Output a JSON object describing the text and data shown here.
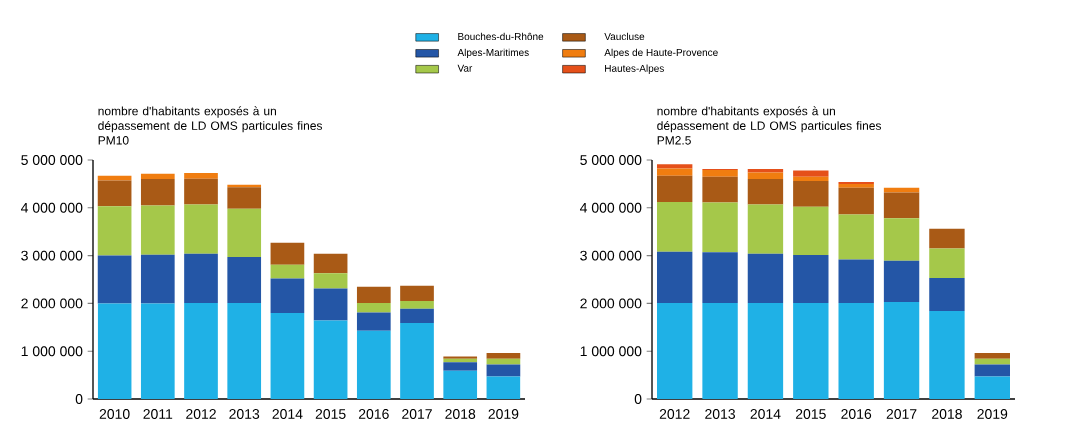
{
  "chart_data": [
    {
      "type": "bar",
      "stacked": true,
      "title": "nombre d'habitants exposés à un dépassement de LD OMS particules fines PM10",
      "categories": [
        "2010",
        "2011",
        "2012",
        "2013",
        "2014",
        "2015",
        "2016",
        "2017",
        "2018",
        "2019"
      ],
      "ylim": [
        0,
        5000000
      ],
      "yticks": [
        {
          "value": 0,
          "label": "0"
        },
        {
          "value": 1000000,
          "label": "1 000 000"
        },
        {
          "value": 2000000,
          "label": "2 000 000"
        },
        {
          "value": 3000000,
          "label": "3 000 000"
        },
        {
          "value": 4000000,
          "label": "4 000 000"
        },
        {
          "value": 5000000,
          "label": "5 000 000"
        }
      ],
      "legend": "top",
      "series": [
        {
          "name": "Bouches-du-Rhône",
          "color": "#1fb1e6",
          "values": [
            2000000,
            2000000,
            2010000,
            2010000,
            1800000,
            1640000,
            1430000,
            1590000,
            590000,
            470000
          ]
        },
        {
          "name": "Alpes-Maritimes",
          "color": "#2456a6",
          "values": [
            1000000,
            1020000,
            1030000,
            960000,
            720000,
            670000,
            380000,
            300000,
            180000,
            250000
          ]
        },
        {
          "name": "Var",
          "color": "#a5c84a",
          "values": [
            1030000,
            1030000,
            1030000,
            1010000,
            290000,
            320000,
            200000,
            160000,
            70000,
            120000
          ]
        },
        {
          "name": "Vaucluse",
          "color": "#a95a16",
          "values": [
            540000,
            550000,
            540000,
            450000,
            460000,
            410000,
            340000,
            320000,
            50000,
            120000
          ]
        },
        {
          "name": "Alpes de Haute-Provence",
          "color": "#f07d10",
          "values": [
            100000,
            110000,
            120000,
            50000,
            0,
            0,
            0,
            0,
            0,
            0
          ]
        },
        {
          "name": "Hautes-Alpes",
          "color": "#e5501a",
          "values": [
            0,
            0,
            0,
            0,
            0,
            0,
            0,
            0,
            0,
            0
          ]
        }
      ]
    },
    {
      "type": "bar",
      "stacked": true,
      "title": "nombre d'habitants exposés à un dépassement de LD OMS particules fines PM2.5",
      "categories": [
        "2012",
        "2013",
        "2014",
        "2015",
        "2016",
        "2017",
        "2018",
        "2019"
      ],
      "ylim": [
        0,
        5000000
      ],
      "yticks": [
        {
          "value": 0,
          "label": "0"
        },
        {
          "value": 1000000,
          "label": "1 000 000"
        },
        {
          "value": 2000000,
          "label": "2 000 000"
        },
        {
          "value": 3000000,
          "label": "3 000 000"
        },
        {
          "value": 4000000,
          "label": "4 000 000"
        },
        {
          "value": 5000000,
          "label": "5 000 000"
        }
      ],
      "series": [
        {
          "color": "#1fb1e6",
          "values": [
            2010000,
            2010000,
            2010000,
            2010000,
            2010000,
            2030000,
            1840000,
            470000
          ]
        },
        {
          "color": "#2456a6",
          "values": [
            1070000,
            1060000,
            1030000,
            1000000,
            910000,
            860000,
            690000,
            250000
          ]
        },
        {
          "color": "#a5c84a",
          "values": [
            1040000,
            1040000,
            1030000,
            1010000,
            940000,
            890000,
            620000,
            120000
          ]
        },
        {
          "color": "#a95a16",
          "values": [
            550000,
            540000,
            530000,
            540000,
            560000,
            540000,
            410000,
            120000
          ]
        },
        {
          "color": "#f07d10",
          "values": [
            150000,
            140000,
            140000,
            90000,
            80000,
            100000,
            0,
            0
          ]
        },
        {
          "color": "#e5501a",
          "values": [
            90000,
            20000,
            70000,
            130000,
            40000,
            0,
            0,
            0
          ]
        }
      ]
    }
  ]
}
